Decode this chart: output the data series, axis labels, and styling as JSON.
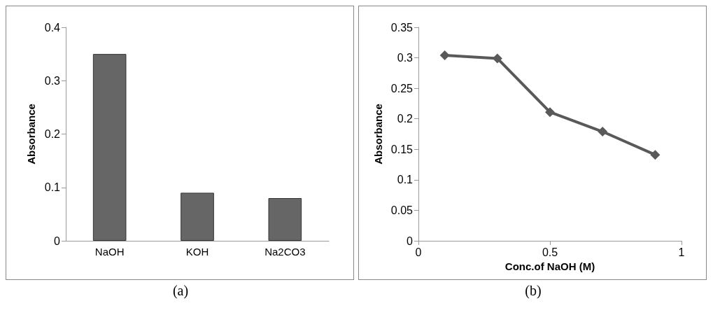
{
  "chart_data": [
    {
      "type": "bar",
      "categories": [
        "NaOH",
        "KOH",
        "Na2CO3"
      ],
      "values": [
        0.35,
        0.09,
        0.08
      ],
      "color": "#666666",
      "ylabel": "Absorbance",
      "ylim": [
        0,
        0.4
      ],
      "yticks": [
        0,
        0.1,
        0.2,
        0.3,
        0.4
      ],
      "grid": false,
      "annotations": [
        "(a)"
      ]
    },
    {
      "type": "line",
      "x": [
        0.1,
        0.3,
        0.5,
        0.7,
        0.9
      ],
      "values": [
        0.304,
        0.299,
        0.211,
        0.179,
        0.141
      ],
      "color": "#595959",
      "marker": "diamond",
      "xlabel": "Conc.of NaOH (M)",
      "ylabel": "Absorbance",
      "xlim": [
        0,
        1
      ],
      "xticks": [
        0,
        0.5,
        1
      ],
      "ylim": [
        0,
        0.35
      ],
      "yticks": [
        0,
        0.05,
        0.1,
        0.15,
        0.2,
        0.25,
        0.3,
        0.35
      ],
      "grid": false,
      "annotations": [
        "(b)"
      ]
    }
  ]
}
